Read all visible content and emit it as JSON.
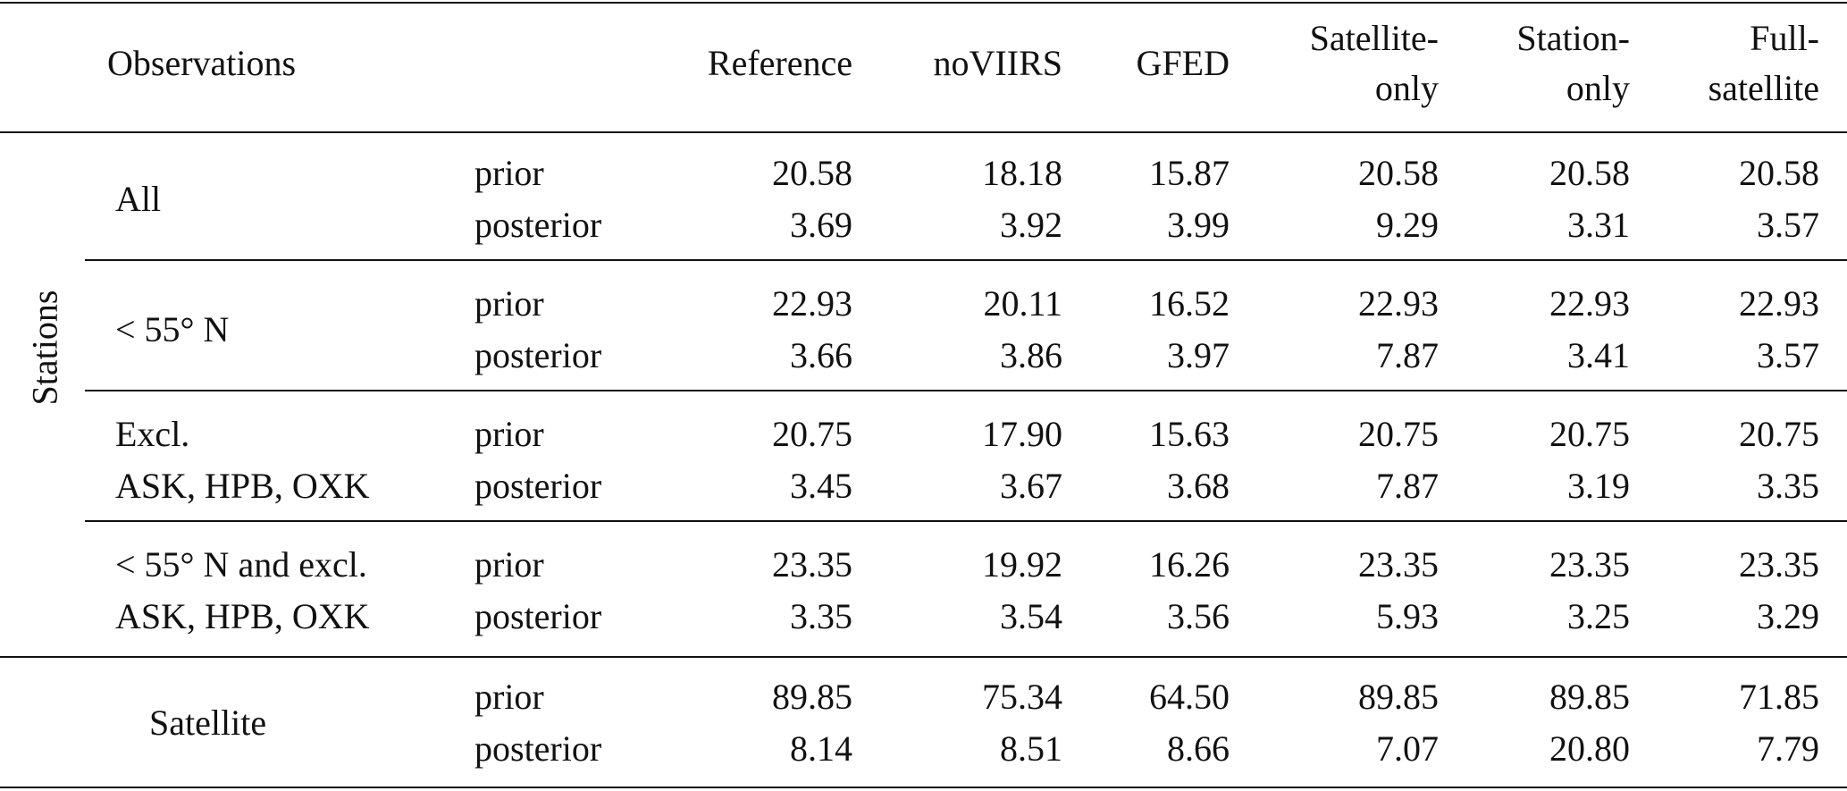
{
  "header": {
    "observations": "Observations",
    "columns": [
      [
        "Reference"
      ],
      [
        "noVIIRS"
      ],
      [
        "GFED"
      ],
      [
        "Satellite-",
        "only"
      ],
      [
        "Station-",
        "only"
      ],
      [
        "Full-",
        "satellite"
      ]
    ]
  },
  "stations_label": "Stations",
  "row_labels": [
    "prior",
    "posterior"
  ],
  "groups": [
    {
      "label": [
        "All"
      ],
      "prior": [
        "20.58",
        "18.18",
        "15.87",
        "20.58",
        "20.58",
        "20.58"
      ],
      "posterior": [
        "3.69",
        "3.92",
        "3.99",
        "9.29",
        "3.31",
        "3.57"
      ]
    },
    {
      "label": [
        "< 55° N"
      ],
      "prior": [
        "22.93",
        "20.11",
        "16.52",
        "22.93",
        "22.93",
        "22.93"
      ],
      "posterior": [
        "3.66",
        "3.86",
        "3.97",
        "7.87",
        "3.41",
        "3.57"
      ]
    },
    {
      "label": [
        "Excl.",
        "ASK, HPB, OXK"
      ],
      "prior": [
        "20.75",
        "17.90",
        "15.63",
        "20.75",
        "20.75",
        "20.75"
      ],
      "posterior": [
        "3.45",
        "3.67",
        "3.68",
        "7.87",
        "3.19",
        "3.35"
      ]
    },
    {
      "label": [
        "< 55° N and excl.",
        "ASK, HPB, OXK"
      ],
      "prior": [
        "23.35",
        "19.92",
        "16.26",
        "23.35",
        "23.35",
        "23.35"
      ],
      "posterior": [
        "3.35",
        "3.54",
        "3.56",
        "5.93",
        "3.25",
        "3.29"
      ]
    },
    {
      "label": [
        "Satellite"
      ],
      "prior": [
        "89.85",
        "75.34",
        "64.50",
        "89.85",
        "89.85",
        "71.85"
      ],
      "posterior": [
        "8.14",
        "8.51",
        "8.66",
        "7.07",
        "20.80",
        "7.79"
      ]
    }
  ]
}
